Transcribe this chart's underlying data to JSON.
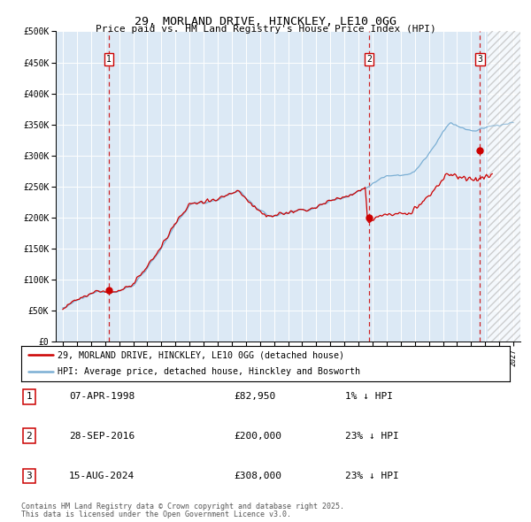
{
  "title1": "29, MORLAND DRIVE, HINCKLEY, LE10 0GG",
  "title2": "Price paid vs. HM Land Registry's House Price Index (HPI)",
  "legend1": "29, MORLAND DRIVE, HINCKLEY, LE10 0GG (detached house)",
  "legend2": "HPI: Average price, detached house, Hinckley and Bosworth",
  "footer1": "Contains HM Land Registry data © Crown copyright and database right 2025.",
  "footer2": "This data is licensed under the Open Government Licence v3.0.",
  "trans_data": [
    [
      1,
      "07-APR-1998",
      "£82,950",
      "1% ↓ HPI",
      1998.27,
      82950
    ],
    [
      2,
      "28-SEP-2016",
      "£200,000",
      "23% ↓ HPI",
      2016.75,
      200000
    ],
    [
      3,
      "15-AUG-2024",
      "£308,000",
      "23% ↓ HPI",
      2024.62,
      308000
    ]
  ],
  "hpi_color": "#7bafd4",
  "price_color": "#cc0000",
  "bg_color": "#dce9f5",
  "grid_color": "#ffffff",
  "ylim": [
    0,
    500000
  ],
  "yticks": [
    0,
    50000,
    100000,
    150000,
    200000,
    250000,
    300000,
    350000,
    400000,
    450000,
    500000
  ],
  "xlim_start": 1994.5,
  "xlim_end": 2027.5,
  "future_start": 2025.2,
  "hpi_start_year": 1995.0,
  "price_start_year": 1995.0
}
